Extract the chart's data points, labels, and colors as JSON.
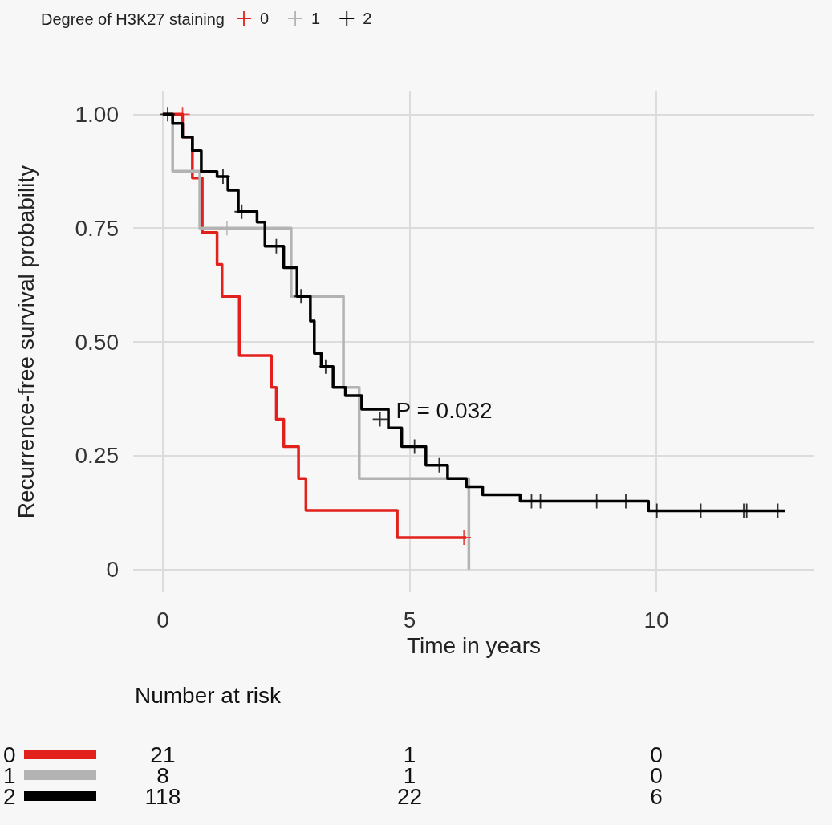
{
  "chart_data": {
    "type": "step",
    "legend_title": "Degree of H3K27 staining",
    "xlabel": "Time in years",
    "ylabel": "Recurrence-free survival probability",
    "xlim": [
      -0.6,
      13.2
    ],
    "xticks": [
      0,
      5,
      10
    ],
    "ylim": [
      -0.05,
      1.05
    ],
    "yticks": [
      0,
      0.25,
      {
        "value": 0.5,
        "label": "0.50"
      },
      0.75,
      {
        "value": 1,
        "label": "1.00"
      }
    ],
    "grid": true,
    "legend": "top",
    "marker": "none",
    "line_style": "solid",
    "series": [
      {
        "name": "0",
        "color": "#e3211c",
        "x": [
          0,
          0.4,
          0.6,
          0.8,
          1.1,
          1.2,
          1.55,
          2.2,
          2.3,
          2.45,
          2.75,
          2.9,
          4.75,
          6.15
        ],
        "values": [
          1,
          0.95,
          0.86,
          0.74,
          0.67,
          0.6,
          0.47,
          0.4,
          0.33,
          0.27,
          0.2,
          0.13,
          0.07,
          0.07
        ]
      },
      {
        "name": "1",
        "color": "#b3b3b3",
        "x": [
          0,
          0.2,
          0.75,
          2.6,
          3.66,
          3.98,
          6.2
        ],
        "values": [
          1,
          0.875,
          0.75,
          0.6,
          0.4,
          0.2,
          0
        ]
      },
      {
        "name": "2",
        "color": "#000000",
        "x": [
          0,
          0.2,
          0.4,
          0.6,
          0.78,
          1.1,
          1.32,
          1.53,
          1.91,
          2.07,
          2.45,
          2.72,
          2.99,
          3.07,
          3.21,
          3.45,
          3.7,
          4.03,
          4.57,
          4.84,
          5.33,
          5.77,
          6.15,
          6.48,
          7.24,
          9.84,
          12.6
        ],
        "values": [
          1,
          0.98,
          0.95,
          0.92,
          0.874,
          0.863,
          0.833,
          0.786,
          0.763,
          0.71,
          0.663,
          0.6,
          0.546,
          0.475,
          0.446,
          0.4,
          0.382,
          0.352,
          0.311,
          0.27,
          0.229,
          0.2,
          0.182,
          0.164,
          0.15,
          0.129,
          0.129
        ]
      },
      {
        "type": "scatter",
        "marker": "cross",
        "color": "#e3211c",
        "x": [
          0.4,
          6.1
        ],
        "values": [
          1,
          0.07
        ]
      },
      {
        "type": "scatter",
        "marker": "cross",
        "color": "#b3b3b3",
        "x": [
          1.3
        ],
        "values": [
          0.75
        ]
      },
      {
        "type": "scatter",
        "marker": "cross",
        "color": "#000000",
        "x": [
          0.1,
          1.22,
          1.6,
          2.3,
          2.8,
          3.3,
          4.4,
          5.1,
          5.6,
          7.47,
          7.65,
          8.79,
          9.38,
          10.01,
          10.9,
          11.77,
          11.83,
          12.46
        ],
        "values": [
          1,
          0.863,
          0.786,
          0.71,
          0.6,
          0.446,
          0.33,
          0.27,
          0.229,
          0.15,
          0.15,
          0.15,
          0.15,
          0.129,
          0.129,
          0.129,
          0.129,
          0.129
        ]
      }
    ],
    "annotations": [
      "P = 0.032",
      "Number at risk",
      "21",
      "1",
      "0",
      "8",
      "1",
      "0",
      "118",
      "22",
      "6"
    ]
  }
}
